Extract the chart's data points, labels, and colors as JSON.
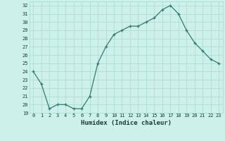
{
  "x": [
    0,
    1,
    2,
    3,
    4,
    5,
    6,
    7,
    8,
    9,
    10,
    11,
    12,
    13,
    14,
    15,
    16,
    17,
    18,
    19,
    20,
    21,
    22,
    23
  ],
  "y": [
    24,
    22.5,
    19.5,
    20,
    20,
    19.5,
    19.5,
    21,
    25,
    27,
    28.5,
    29,
    29.5,
    29.5,
    30,
    30.5,
    31.5,
    32,
    31,
    29,
    27.5,
    26.5,
    25.5,
    25
  ],
  "line_color": "#2e7d6e",
  "marker": "+",
  "bg_color": "#cef0eb",
  "grid_color": "#aedcd6",
  "xlabel": "Humidex (Indice chaleur)",
  "ylim": [
    19,
    32.5
  ],
  "yticks": [
    19,
    20,
    21,
    22,
    23,
    24,
    25,
    26,
    27,
    28,
    29,
    30,
    31,
    32
  ],
  "xlim": [
    -0.5,
    23.5
  ],
  "xticks": [
    0,
    1,
    2,
    3,
    4,
    5,
    6,
    7,
    8,
    9,
    10,
    11,
    12,
    13,
    14,
    15,
    16,
    17,
    18,
    19,
    20,
    21,
    22,
    23
  ],
  "tick_color": "#1a3c38",
  "label_color": "#1a3c38",
  "tick_fontsize": 5.0,
  "xlabel_fontsize": 6.5
}
